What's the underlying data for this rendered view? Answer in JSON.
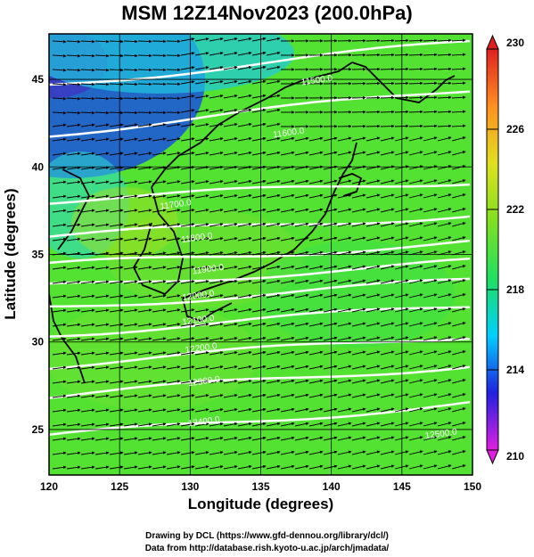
{
  "title": "MSM 12Z14Nov2023 (200.0hPa)",
  "xlabel": "Longitude (degrees)",
  "ylabel": "Latitude  (degrees)",
  "credits": [
    "Drawing by DCL (https://www.gfd-dennou.org/library/dcl/)",
    "Data from http://database.rish.kyoto-u.ac.jp/arch/jmadata/"
  ],
  "map": {
    "lon_range": [
      120,
      150
    ],
    "lat_range": [
      22.4,
      47.6
    ],
    "lon_ticks": [
      "120",
      "125",
      "130",
      "135",
      "140",
      "145",
      "150"
    ],
    "lat_ticks": [
      "25",
      "30",
      "35",
      "40",
      "45"
    ],
    "shaded_field": "temperature (K)",
    "colorbar": {
      "min": 210,
      "max": 230,
      "tick_labels": [
        "230",
        "226",
        "222",
        "218",
        "214",
        "210"
      ],
      "colors": [
        "#e020e0",
        "#2020e0",
        "#00d0ff",
        "#20e060",
        "#80e020",
        "#e0e020",
        "#ff9020",
        "#e02020"
      ]
    },
    "contour_labels": [
      {
        "text": "11500.0",
        "lon": 139.0,
        "lat": 44.8
      },
      {
        "text": "11600.0",
        "lon": 137.0,
        "lat": 41.8
      },
      {
        "text": "11700.0",
        "lon": 129.0,
        "lat": 37.7
      },
      {
        "text": "11800.0",
        "lon": 130.5,
        "lat": 35.8
      },
      {
        "text": "11900.0",
        "lon": 131.3,
        "lat": 34.0
      },
      {
        "text": "12000.0",
        "lon": 130.6,
        "lat": 32.5
      },
      {
        "text": "12100.0",
        "lon": 130.6,
        "lat": 31.1
      },
      {
        "text": "12200.0",
        "lon": 130.8,
        "lat": 29.5
      },
      {
        "text": "12300.0",
        "lon": 131.0,
        "lat": 27.6
      },
      {
        "text": "12400.0",
        "lon": 131.0,
        "lat": 25.3
      },
      {
        "text": "12500.0",
        "lon": 147.8,
        "lat": 24.6
      }
    ]
  }
}
